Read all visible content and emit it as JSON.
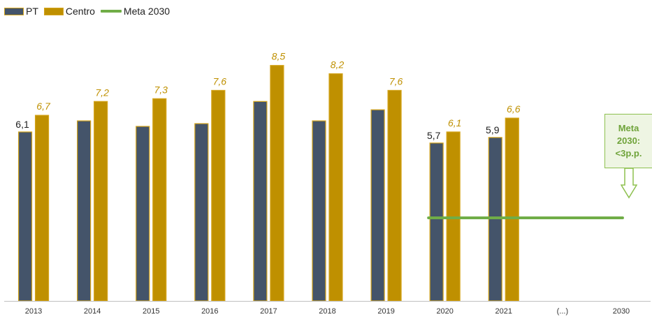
{
  "colors": {
    "pt": "#44546a",
    "centro": "#bf9000",
    "outline": "#d4a41a",
    "meta": "#70ad47",
    "meta_box_bg": "#eef5e3",
    "meta_box_border": "#8dc04f",
    "axis": "#bfbfbf"
  },
  "legend": {
    "items": [
      {
        "label": "PT",
        "kind": "bar",
        "color": "#44546a"
      },
      {
        "label": "Centro",
        "kind": "bar",
        "color": "#bf9000"
      },
      {
        "label": "Meta 2030",
        "kind": "line",
        "color": "#70ad47"
      }
    ]
  },
  "annotation": {
    "text": "Meta 2030: <3p.p."
  },
  "chart_data": {
    "type": "bar",
    "categories": [
      "2013",
      "2014",
      "2015",
      "2016",
      "2017",
      "2018",
      "2019",
      "2020",
      "2021",
      "(...)",
      "2030"
    ],
    "series": [
      {
        "name": "PT",
        "values": [
          6.1,
          6.5,
          6.3,
          6.4,
          7.2,
          6.5,
          6.9,
          5.7,
          5.9,
          null,
          null
        ],
        "labels": [
          "6,1",
          "",
          "",
          "",
          "",
          "",
          "",
          "5,7",
          "5,9",
          "",
          ""
        ]
      },
      {
        "name": "Centro",
        "values": [
          6.7,
          7.2,
          7.3,
          7.6,
          8.5,
          8.2,
          7.6,
          6.1,
          6.6,
          null,
          null
        ],
        "labels": [
          "6,7",
          "7,2",
          "7,3",
          "7,6",
          "8,5",
          "8,2",
          "7,6",
          "6,1",
          "6,6",
          "",
          ""
        ]
      },
      {
        "name": "Meta 2030",
        "type": "line",
        "value": 3,
        "from": "2020",
        "to": "2030"
      }
    ],
    "ylim": [
      0,
      9.4
    ],
    "grid": false,
    "legend_position": "top-left"
  }
}
